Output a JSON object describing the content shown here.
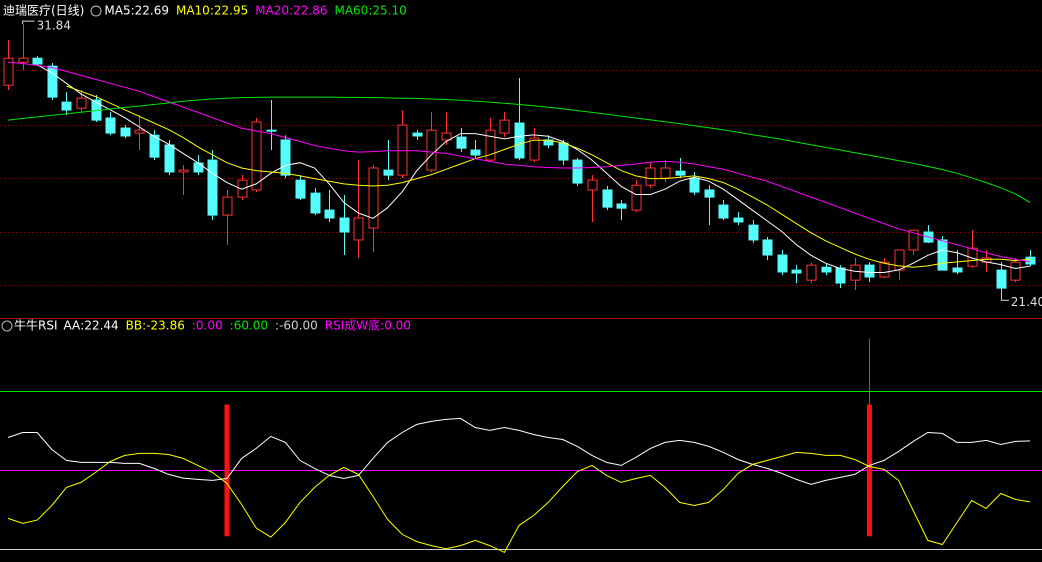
{
  "chart_data": [
    {
      "type": "candlestick",
      "title": "迪瑞医疗(日线)",
      "legend_separator": ": ",
      "categories": [
        null,
        null,
        null,
        null,
        null,
        null,
        null,
        null,
        null,
        null,
        null,
        null,
        null,
        null,
        null,
        null,
        null,
        null,
        null,
        null,
        null,
        null,
        null,
        null,
        null,
        null,
        null,
        null,
        null,
        null,
        null,
        null,
        null,
        null,
        null,
        null,
        null,
        null,
        null,
        null,
        null,
        null,
        null,
        null,
        null,
        null,
        null,
        null,
        null,
        null,
        null,
        null,
        null,
        null,
        null,
        null,
        null,
        null,
        null,
        null,
        null,
        null,
        null,
        null,
        null,
        null,
        null,
        null,
        null,
        null,
        null
      ],
      "open": [
        29.53,
        30.4,
        30.55,
        30.25,
        28.89,
        28.66,
        28.97,
        28.29,
        27.91,
        27.72,
        27.64,
        27.27,
        26.25,
        26.59,
        26.7,
        24.62,
        25.3,
        25.57,
        27.83,
        27.46,
        25.94,
        25.45,
        24.81,
        24.51,
        23.68,
        24.13,
        26.32,
        26.13,
        27.72,
        26.32,
        27.46,
        27.57,
        27.08,
        26.7,
        27.72,
        28.1,
        26.7,
        27.46,
        27.34,
        26.7,
        25.57,
        25.57,
        25.04,
        24.81,
        25.75,
        26.02,
        26.28,
        26.02,
        25.57,
        25.0,
        24.51,
        24.24,
        23.68,
        23.11,
        22.54,
        22.16,
        22.65,
        22.62,
        22.16,
        22.73,
        22.28,
        22.54,
        23.3,
        23.98,
        23.68,
        22.62,
        22.69,
        22.84,
        22.54,
        22.16,
        23.03
      ],
      "high": [
        31.24,
        31.84,
        30.63,
        30.37,
        29.27,
        29.35,
        29.16,
        28.51,
        28.02,
        28.4,
        27.83,
        27.46,
        26.51,
        26.89,
        27.08,
        25.57,
        26.13,
        28.29,
        28.97,
        27.64,
        26.13,
        25.64,
        25.57,
        25.38,
        26.7,
        26.51,
        27.46,
        28.59,
        27.83,
        28.51,
        28.51,
        27.91,
        27.46,
        28.29,
        28.51,
        29.8,
        27.91,
        27.64,
        27.46,
        26.78,
        26.13,
        25.72,
        25.19,
        25.94,
        26.62,
        26.7,
        26.78,
        26.25,
        25.75,
        25.19,
        24.73,
        24.43,
        23.79,
        23.3,
        22.73,
        22.84,
        22.77,
        22.73,
        23.0,
        22.84,
        23.0,
        23.3,
        24.05,
        24.24,
        23.83,
        23.3,
        24.05,
        23.3,
        22.84,
        23.0,
        23.3
      ],
      "low": [
        29.35,
        30.1,
        30.25,
        28.97,
        28.4,
        28.51,
        28.14,
        27.64,
        27.53,
        27.08,
        26.7,
        26.13,
        25.38,
        26.13,
        24.43,
        23.49,
        25.19,
        25.49,
        27.08,
        26.02,
        25.19,
        24.62,
        24.36,
        23.11,
        23.0,
        23.22,
        25.94,
        26.02,
        27.46,
        26.25,
        27.27,
        27.0,
        26.78,
        26.62,
        27.57,
        26.7,
        26.62,
        27.15,
        26.51,
        25.72,
        24.36,
        24.81,
        24.43,
        24.73,
        25.64,
        25.87,
        26.02,
        25.38,
        24.24,
        24.43,
        24.24,
        23.56,
        22.92,
        22.35,
        22.05,
        22.05,
        22.35,
        21.86,
        21.79,
        22.09,
        22.24,
        22.16,
        23.11,
        23.56,
        22.54,
        22.39,
        22.62,
        22.47,
        21.4,
        22.09,
        22.69
      ],
      "close": [
        30.55,
        30.55,
        30.33,
        29.08,
        28.59,
        29.04,
        28.21,
        27.72,
        27.61,
        27.83,
        26.81,
        26.25,
        26.32,
        26.25,
        24.62,
        25.3,
        25.94,
        28.14,
        27.8,
        26.13,
        25.26,
        24.7,
        24.51,
        23.98,
        24.51,
        26.4,
        26.13,
        28.02,
        27.61,
        27.83,
        27.72,
        27.15,
        26.89,
        27.83,
        28.21,
        26.78,
        27.53,
        27.27,
        26.7,
        25.83,
        25.94,
        24.92,
        24.88,
        25.75,
        26.4,
        26.4,
        26.13,
        25.49,
        25.3,
        24.51,
        24.36,
        23.68,
        23.11,
        22.47,
        22.43,
        22.73,
        22.47,
        22.05,
        22.73,
        22.28,
        22.84,
        23.3,
        24.05,
        23.6,
        22.54,
        22.47,
        23.37,
        23.0,
        21.86,
        22.84,
        22.77
      ],
      "up_color": "#ff3232",
      "down_color": "#54fcfc",
      "series": [
        {
          "name": "MA5",
          "color": "#ffffff",
          "value_label": "22.69",
          "values": [
            null,
            null,
            30.3,
            30.0,
            29.6,
            29.2,
            28.9,
            28.6,
            28.3,
            27.95,
            27.6,
            27.3,
            26.95,
            26.6,
            26.2,
            25.85,
            25.6,
            25.8,
            26.2,
            26.5,
            26.6,
            26.4,
            25.8,
            25.1,
            24.7,
            24.5,
            24.9,
            25.5,
            26.3,
            26.9,
            27.4,
            27.7,
            27.7,
            27.6,
            27.5,
            27.6,
            27.65,
            27.6,
            27.4,
            27.1,
            26.7,
            26.2,
            25.7,
            25.4,
            25.4,
            25.6,
            25.9,
            26.05,
            25.9,
            25.6,
            25.2,
            24.8,
            24.4,
            24.0,
            23.5,
            23.1,
            22.8,
            22.6,
            22.5,
            22.45,
            22.45,
            22.55,
            22.8,
            23.1,
            23.3,
            23.2,
            23.0,
            22.85,
            22.75,
            22.6,
            22.69
          ]
        },
        {
          "name": "MA10",
          "color": "#ffff00",
          "value_label": "22.95",
          "values": [
            null,
            null,
            null,
            null,
            29.5,
            29.3,
            29.1,
            28.85,
            28.6,
            28.35,
            28.1,
            27.85,
            27.55,
            27.2,
            26.9,
            26.6,
            26.4,
            26.3,
            26.25,
            26.2,
            26.1,
            26.0,
            25.9,
            25.8,
            25.75,
            25.72,
            25.75,
            25.85,
            26.0,
            26.15,
            26.35,
            26.55,
            26.75,
            26.9,
            27.1,
            27.3,
            27.45,
            27.45,
            27.35,
            27.15,
            26.9,
            26.6,
            26.3,
            26.1,
            26.0,
            26.0,
            26.05,
            26.1,
            26.0,
            25.85,
            25.6,
            25.3,
            25.0,
            24.65,
            24.3,
            23.95,
            23.65,
            23.4,
            23.15,
            22.95,
            22.8,
            22.7,
            22.65,
            22.7,
            22.8,
            22.85,
            22.9,
            22.95,
            22.95,
            22.9,
            22.95
          ]
        },
        {
          "name": "MA20",
          "color": "#ff00ff",
          "value_label": "22.86",
          "values": [
            30.4,
            30.35,
            30.28,
            30.2,
            30.05,
            29.9,
            29.75,
            29.6,
            29.45,
            29.3,
            29.1,
            28.9,
            28.7,
            28.5,
            28.3,
            28.1,
            27.9,
            27.8,
            27.7,
            27.55,
            27.4,
            27.25,
            27.15,
            27.05,
            27.0,
            27.02,
            27.05,
            27.05,
            27.05,
            27.0,
            26.95,
            26.85,
            26.75,
            26.65,
            26.55,
            26.5,
            26.45,
            26.42,
            26.4,
            26.4,
            26.42,
            26.45,
            26.5,
            26.55,
            26.62,
            26.65,
            26.62,
            26.55,
            26.45,
            26.35,
            26.2,
            26.05,
            25.9,
            25.7,
            25.5,
            25.3,
            25.1,
            24.9,
            24.7,
            24.5,
            24.3,
            24.1,
            23.95,
            23.8,
            23.65,
            23.5,
            23.35,
            23.2,
            23.05,
            22.95,
            22.86
          ]
        },
        {
          "name": "MA60",
          "color": "#00e600",
          "value_label": "25.10",
          "values": [
            28.21,
            28.27,
            28.33,
            28.39,
            28.45,
            28.51,
            28.57,
            28.63,
            28.69,
            28.74,
            28.8,
            28.86,
            28.92,
            28.97,
            29.01,
            29.04,
            29.06,
            29.07,
            29.08,
            29.08,
            29.08,
            29.08,
            29.08,
            29.07,
            29.07,
            29.06,
            29.05,
            29.04,
            29.03,
            29.01,
            28.99,
            28.96,
            28.93,
            28.89,
            28.85,
            28.8,
            28.75,
            28.7,
            28.64,
            28.57,
            28.5,
            28.43,
            28.36,
            28.29,
            28.22,
            28.15,
            28.08,
            28.0,
            27.92,
            27.84,
            27.75,
            27.66,
            27.57,
            27.48,
            27.38,
            27.28,
            27.18,
            27.08,
            26.98,
            26.88,
            26.78,
            26.68,
            26.58,
            26.46,
            26.34,
            26.2,
            26.03,
            25.85,
            25.65,
            25.42,
            25.1
          ]
        }
      ],
      "ylim": [
        20.73,
        32.07
      ],
      "yticks": [
        30.1,
        28.02,
        26.02,
        23.98,
        21.98
      ],
      "grid": true,
      "annotations": [
        {
          "x": 1,
          "value": 31.84
        },
        {
          "x": 68,
          "value": 21.4,
          "label": "21.40"
        }
      ]
    },
    {
      "type": "line",
      "title": "牛牛RSI",
      "legend_separator": ": ",
      "categories": [
        null,
        null,
        null,
        null,
        null,
        null,
        null,
        null,
        null,
        null,
        null,
        null,
        null,
        null,
        null,
        null,
        null,
        null,
        null,
        null,
        null,
        null,
        null,
        null,
        null,
        null,
        null,
        null,
        null,
        null,
        null,
        null,
        null,
        null,
        null,
        null,
        null,
        null,
        null,
        null,
        null,
        null,
        null,
        null,
        null,
        null,
        null,
        null,
        null,
        null,
        null,
        null,
        null,
        null,
        null,
        null,
        null,
        null,
        null,
        null,
        null,
        null,
        null,
        null,
        null,
        null,
        null,
        null,
        null,
        null,
        null
      ],
      "series": [
        {
          "name": "AA",
          "color": "#ffffff",
          "values": [
            25.0,
            28.8,
            28.8,
            15.9,
            7.6,
            6.1,
            6.1,
            6.1,
            5.3,
            5.3,
            1.5,
            -3.0,
            -5.8,
            -6.8,
            -7.6,
            -6.1,
            9.1,
            16.7,
            25.8,
            21.3,
            7.6,
            1.5,
            -3.8,
            -6.1,
            -3.8,
            9.1,
            21.3,
            28.8,
            34.9,
            37.2,
            38.7,
            39.5,
            32.6,
            30.4,
            32.6,
            30.4,
            27.3,
            25.0,
            23.5,
            18.2,
            11.4,
            6.1,
            3.8,
            9.9,
            16.7,
            21.3,
            22.8,
            21.3,
            18.2,
            13.7,
            8.3,
            4.6,
            1.5,
            -2.3,
            -6.8,
            -10.6,
            -7.6,
            -5.3,
            -3.0,
            3.8,
            7.6,
            14.4,
            22.0,
            28.8,
            28.1,
            21.3,
            21.3,
            22.8,
            19.7,
            22.0,
            22.44
          ]
        },
        {
          "name": "BB",
          "color": "#ffff00",
          "values": [
            -36.4,
            -40.2,
            -37.7,
            -26.6,
            -12.9,
            -9.1,
            -1.5,
            6.8,
            11.4,
            12.9,
            12.9,
            12.1,
            9.1,
            3.8,
            -1.5,
            -9.9,
            -25.8,
            -43.7,
            -50.6,
            -39.5,
            -24.3,
            -12.9,
            -3.8,
            2.3,
            -3.0,
            -19.7,
            -37.2,
            -48.6,
            -54.0,
            -57.1,
            -59.4,
            -57.1,
            -53.1,
            -57.1,
            -62.2,
            -41.7,
            -34.2,
            -24.3,
            -12.1,
            -0.8,
            3.8,
            -3.8,
            -9.1,
            -6.1,
            -3.8,
            -12.9,
            -24.3,
            -26.6,
            -24.3,
            -14.4,
            -2.3,
            4.6,
            7.6,
            10.6,
            13.7,
            12.9,
            11.4,
            11.4,
            8.3,
            3.0,
            0.8,
            -7.6,
            -30.4,
            -53.1,
            -56.2,
            -39.5,
            -22.8,
            -28.8,
            -17.5,
            -22.0,
            -23.86
          ]
        }
      ],
      "levels": [
        {
          "value": 0,
          "label": "0.00",
          "color": "#ff00ff"
        },
        {
          "value": 60,
          "label": "60.00",
          "color": "#00e600"
        },
        {
          "value": -60,
          "label": "-60.00",
          "color": "#d0d0d0"
        }
      ],
      "signal": {
        "name": "RSI成W底",
        "color": "#ff00ff",
        "x": [
          59
        ],
        "values": [
          100
        ],
        "legend_value": "0.00"
      },
      "signal_bars": {
        "color": "#ff1010",
        "x": [
          15,
          59
        ],
        "low": [
          -50,
          -50
        ],
        "high": [
          50,
          50
        ]
      },
      "ylim": [
        -68,
        99
      ]
    }
  ]
}
